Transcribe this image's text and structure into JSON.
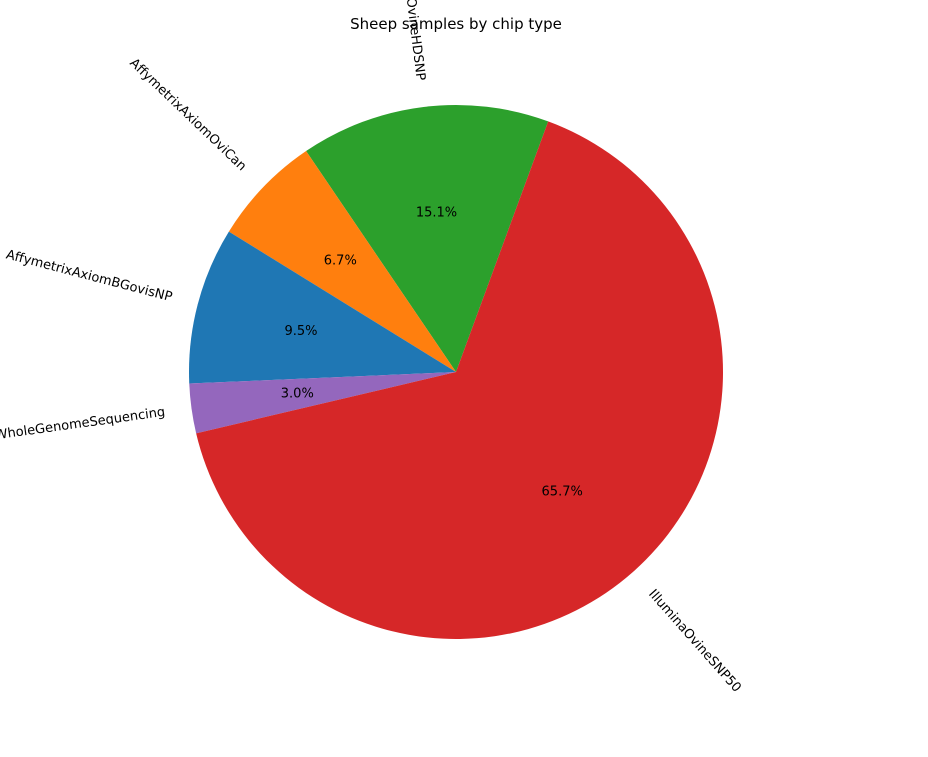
{
  "chart_data": {
    "type": "pie",
    "title": "Sheep samples by chip type",
    "slices": [
      {
        "label": "IlluminaOvineHDSNP",
        "value": 15.1,
        "pct_label": "15.1%",
        "color": "#2ca02c"
      },
      {
        "label": "AffymetrixAxiomOviCan",
        "value": 6.7,
        "pct_label": "6.7%",
        "color": "#ff7f0e"
      },
      {
        "label": "AffymetrixAxiomBGovisNP",
        "value": 9.5,
        "pct_label": "9.5%",
        "color": "#1f77b4"
      },
      {
        "label": "WholeGenomeSequencing",
        "value": 3.0,
        "pct_label": "3.0%",
        "color": "#9467bd"
      },
      {
        "label": "IlluminaOvineSNP50",
        "value": 65.7,
        "pct_label": "65.7%",
        "color": "#d62728"
      }
    ]
  }
}
